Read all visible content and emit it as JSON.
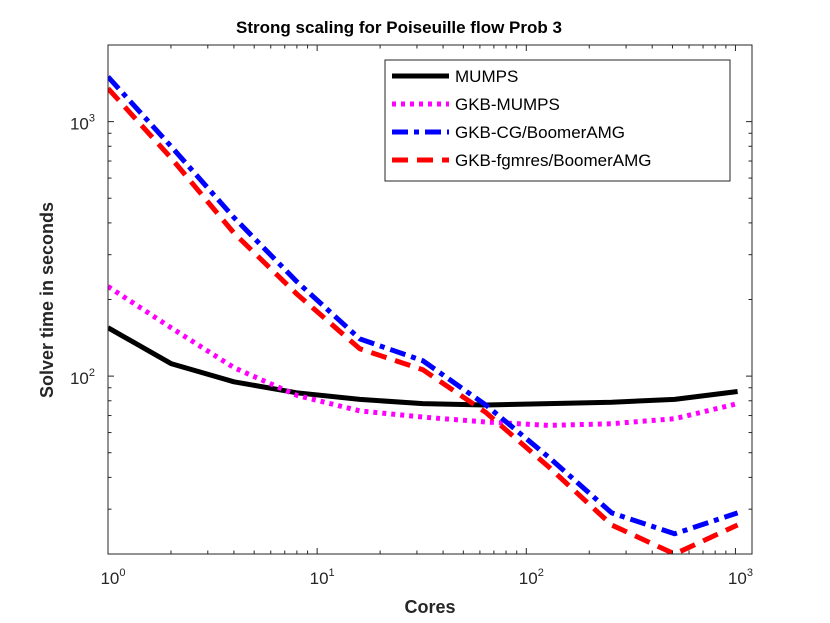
{
  "chart_data": {
    "type": "line",
    "title": "Strong scaling for Poiseuille flow Prob 3",
    "xlabel": "Cores",
    "ylabel": "Solver time in seconds",
    "xscale": "log",
    "yscale": "log",
    "xlim": [
      1,
      1200
    ],
    "ylim": [
      20,
      2000
    ],
    "grid": false,
    "legend_position": "top-right",
    "x_ticks": [
      {
        "base": "10",
        "exp": "0",
        "value": 1
      },
      {
        "base": "10",
        "exp": "1",
        "value": 10
      },
      {
        "base": "10",
        "exp": "2",
        "value": 100
      },
      {
        "base": "10",
        "exp": "3",
        "value": 1000
      }
    ],
    "y_ticks": [
      {
        "base": "10",
        "exp": "2",
        "value": 100
      },
      {
        "base": "10",
        "exp": "3",
        "value": 1000
      }
    ],
    "series": [
      {
        "name": "MUMPS",
        "color": "#000000",
        "style": "solid",
        "x": [
          1,
          2,
          4,
          8,
          16,
          32,
          64,
          128,
          256,
          512,
          1024
        ],
        "y": [
          155,
          112,
          95,
          86,
          81,
          78,
          77,
          78,
          79,
          81,
          87
        ]
      },
      {
        "name": "GKB-MUMPS",
        "color": "#ff00ff",
        "style": "dotted",
        "x": [
          1,
          2,
          4,
          8,
          16,
          32,
          64,
          128,
          256,
          512,
          1024
        ],
        "y": [
          225,
          155,
          108,
          84,
          73,
          69,
          66,
          64,
          65,
          68,
          78
        ]
      },
      {
        "name": "GKB-CG/BoomerAMG",
        "color": "#0000ff",
        "style": "dashdot",
        "x": [
          1,
          2,
          4,
          8,
          16,
          32,
          64,
          128,
          256,
          512,
          1024
        ],
        "y": [
          1500,
          800,
          420,
          235,
          140,
          115,
          77,
          48,
          29,
          24,
          29
        ]
      },
      {
        "name": "GKB-fgmres/BoomerAMG",
        "color": "#ff0000",
        "style": "dashed",
        "x": [
          1,
          2,
          4,
          8,
          16,
          32,
          64,
          128,
          256,
          512,
          1024
        ],
        "y": [
          1350,
          720,
          365,
          210,
          128,
          106,
          72,
          44,
          26,
          20,
          26
        ]
      }
    ]
  }
}
